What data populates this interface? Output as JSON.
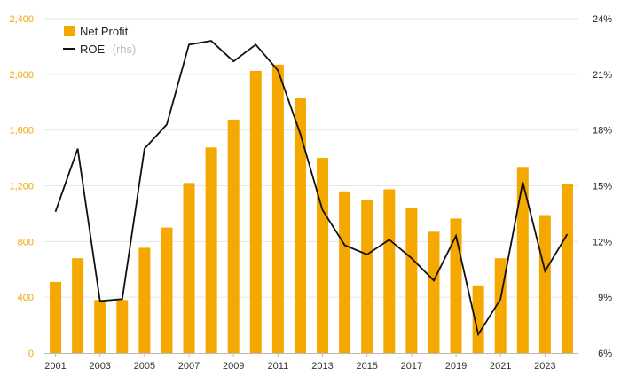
{
  "chart_data": {
    "type": "bar+line",
    "title": "",
    "categories": [
      "2001",
      "2002",
      "2003",
      "2004",
      "2005",
      "2006",
      "2007",
      "2008",
      "2009",
      "2010",
      "2011",
      "2012",
      "2013",
      "2014",
      "2015",
      "2016",
      "2017",
      "2018",
      "2019",
      "2020",
      "2021",
      "2022",
      "2023",
      "2024"
    ],
    "x_tick_labels": [
      "2001",
      "2003",
      "2005",
      "2007",
      "2009",
      "2011",
      "2013",
      "2015",
      "2017",
      "2019",
      "2021",
      "2023"
    ],
    "series": [
      {
        "name": "Net Profit",
        "type": "bar",
        "axis": "left",
        "color": "#f5a800",
        "values": [
          510,
          680,
          380,
          380,
          755,
          900,
          1220,
          1475,
          1675,
          2025,
          2070,
          1830,
          1400,
          1160,
          1100,
          1175,
          1040,
          870,
          965,
          485,
          680,
          1335,
          990,
          1215
        ]
      },
      {
        "name": "ROE",
        "name_suffix": "(rhs)",
        "type": "line",
        "axis": "right",
        "color": "#111111",
        "values": [
          13.6,
          17.0,
          8.8,
          8.9,
          17.0,
          18.3,
          22.6,
          22.8,
          21.7,
          22.6,
          21.2,
          17.8,
          13.7,
          11.8,
          11.3,
          12.1,
          11.1,
          9.9,
          12.3,
          7.0,
          8.9,
          15.2,
          10.4,
          12.4
        ]
      }
    ],
    "y_left": {
      "min": 0,
      "max": 2400,
      "ticks": [
        0,
        400,
        800,
        1200,
        1600,
        2000,
        2400
      ],
      "tick_labels": [
        "0",
        "400",
        "800",
        "1,200",
        "1,600",
        "2,000",
        "2,400"
      ]
    },
    "y_right": {
      "min": 6,
      "max": 24,
      "ticks": [
        6,
        9,
        12,
        15,
        18,
        21,
        24
      ],
      "tick_labels": [
        "6%",
        "9%",
        "12%",
        "15%",
        "18%",
        "21%",
        "24%"
      ]
    },
    "grid": true,
    "legend_position": "top-left"
  }
}
